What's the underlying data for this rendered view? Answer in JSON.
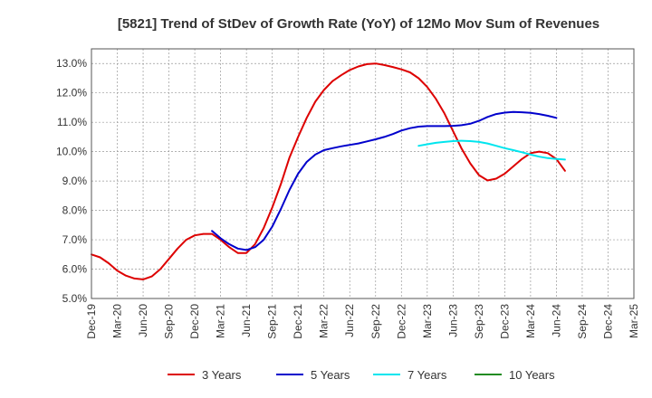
{
  "chart_data": {
    "type": "line",
    "title": "[5821]  Trend of StDev of Growth Rate (YoY) of 12Mo Mov Sum of Revenues",
    "xlabel": "",
    "ylabel": "",
    "ylim": [
      5.0,
      13.5
    ],
    "yticks": [
      5.0,
      6.0,
      7.0,
      8.0,
      9.0,
      10.0,
      11.0,
      12.0,
      13.0
    ],
    "ytick_labels": [
      "5.0%",
      "6.0%",
      "7.0%",
      "8.0%",
      "9.0%",
      "10.0%",
      "11.0%",
      "12.0%",
      "13.0%"
    ],
    "x_categories": [
      "Dec-19",
      "Mar-20",
      "Jun-20",
      "Sep-20",
      "Dec-20",
      "Mar-21",
      "Jun-21",
      "Sep-21",
      "Dec-21",
      "Mar-22",
      "Jun-22",
      "Sep-22",
      "Dec-22",
      "Mar-23",
      "Jun-23",
      "Sep-23",
      "Dec-23",
      "Mar-24",
      "Jun-24",
      "Sep-24",
      "Dec-24",
      "Mar-25"
    ],
    "grid": true,
    "legend_position": "bottom",
    "series": [
      {
        "name": "3 Years",
        "color": "#dd0000",
        "start_index": 0,
        "values": [
          6.5,
          6.4,
          6.2,
          5.95,
          5.78,
          5.68,
          5.65,
          5.75,
          6.0,
          6.35,
          6.7,
          7.0,
          7.15,
          7.2,
          7.2,
          7.0,
          6.75,
          6.55,
          6.55,
          6.85,
          7.4,
          8.1,
          8.9,
          9.8,
          10.5,
          11.15,
          11.7,
          12.1,
          12.4,
          12.6,
          12.78,
          12.9,
          12.98,
          13.0,
          12.95,
          12.88,
          12.8,
          12.7,
          12.5,
          12.2,
          11.8,
          11.3,
          10.7,
          10.1,
          9.6,
          9.2,
          9.02,
          9.08,
          9.25,
          9.5,
          9.75,
          9.95,
          10.0,
          9.95,
          9.75,
          9.35
        ]
      },
      {
        "name": "5 Years",
        "color": "#0000cc",
        "start_index": 14,
        "values": [
          7.3,
          7.05,
          6.85,
          6.7,
          6.65,
          6.75,
          7.0,
          7.45,
          8.05,
          8.7,
          9.25,
          9.65,
          9.9,
          10.05,
          10.12,
          10.18,
          10.23,
          10.28,
          10.35,
          10.42,
          10.5,
          10.6,
          10.72,
          10.8,
          10.85,
          10.87,
          10.87,
          10.87,
          10.88,
          10.9,
          10.95,
          11.05,
          11.18,
          11.28,
          11.33,
          11.35,
          11.34,
          11.32,
          11.28,
          11.22,
          11.15
        ]
      },
      {
        "name": "7 Years",
        "color": "#00e5ee",
        "start_index": 38,
        "values": [
          10.2,
          10.25,
          10.3,
          10.33,
          10.36,
          10.37,
          10.36,
          10.33,
          10.28,
          10.2,
          10.12,
          10.05,
          9.98,
          9.9,
          9.83,
          9.78,
          9.75,
          9.73
        ]
      },
      {
        "name": "10 Years",
        "color": "#228b22",
        "start_index": 0,
        "values": []
      }
    ]
  }
}
